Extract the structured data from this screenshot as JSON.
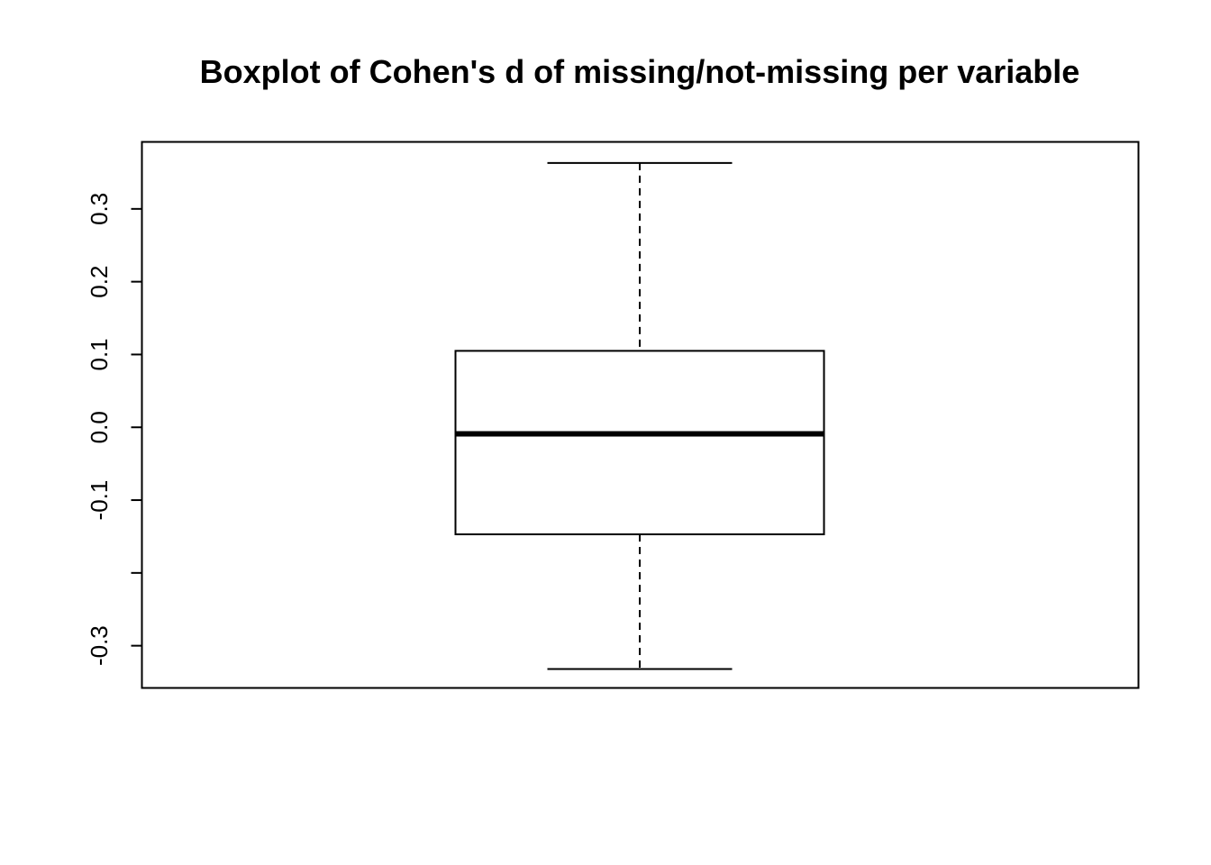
{
  "chart_data": {
    "type": "boxplot",
    "title": "Boxplot of Cohen's d of missing/not-missing per variable",
    "xlabel": "",
    "ylabel": "",
    "ylim": [
      -0.358,
      0.392
    ],
    "yticks": [
      {
        "value": 0.3,
        "label": "0.3"
      },
      {
        "value": 0.2,
        "label": "0.2"
      },
      {
        "value": 0.1,
        "label": "0.1"
      },
      {
        "value": 0.0,
        "label": "0.0"
      },
      {
        "value": -0.1,
        "label": "-0.1"
      },
      {
        "value": -0.2,
        "label": ""
      },
      {
        "value": -0.3,
        "label": "-0.3"
      }
    ],
    "box": {
      "whisker_low": -0.332,
      "q1": -0.147,
      "median": -0.009,
      "q3": 0.105,
      "whisker_high": 0.363
    },
    "grid": false,
    "colors": {
      "stroke": "#000000",
      "background": "#ffffff"
    }
  }
}
